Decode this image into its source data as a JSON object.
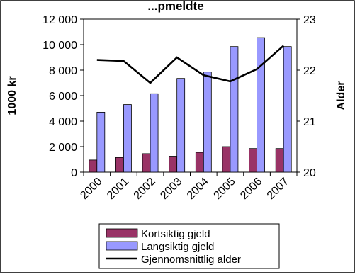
{
  "chart_data": {
    "type": "bar",
    "title": "...pmeldte",
    "categories": [
      "2000",
      "2001",
      "2002",
      "2003",
      "2004",
      "2005",
      "2006",
      "2007"
    ],
    "series": [
      {
        "name": "Kortsiktig gjeld",
        "type": "bar",
        "axis": "left",
        "color": "#993366",
        "values": [
          950,
          1150,
          1450,
          1250,
          1550,
          2000,
          1850,
          1850
        ]
      },
      {
        "name": "Langsiktig gjeld",
        "type": "bar",
        "axis": "left",
        "color": "#9999ff",
        "values": [
          4700,
          5300,
          6150,
          7350,
          7850,
          9850,
          10550,
          9850
        ]
      },
      {
        "name": "Gjennomsnittlig alder",
        "type": "line",
        "axis": "right",
        "color": "#000000",
        "values": [
          22.2,
          22.18,
          21.75,
          22.25,
          21.9,
          21.78,
          22.02,
          22.48
        ]
      }
    ],
    "ylabel": "1000 kr",
    "ylabel_right": "Alder",
    "ylim": [
      0,
      12000
    ],
    "ylim_right": [
      20,
      23
    ],
    "yticks": [
      "0",
      "2 000",
      "4 000",
      "6 000",
      "8 000",
      "10 000",
      "12 000"
    ],
    "yticks_right": [
      "20",
      "21",
      "22",
      "23"
    ],
    "grid": false,
    "legend_position": "bottom"
  }
}
